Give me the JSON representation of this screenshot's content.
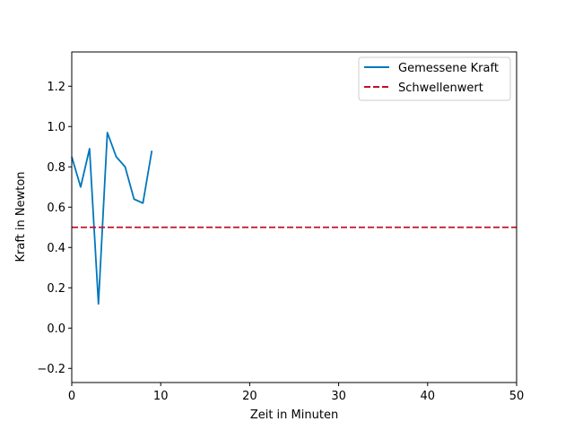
{
  "chart_data": {
    "type": "line",
    "title": "",
    "xlabel": "Zeit in Minuten",
    "ylabel": "Kraft in Newton",
    "xlim": [
      0,
      50
    ],
    "ylim": [
      -0.27,
      1.37
    ],
    "xticks": [
      0,
      10,
      20,
      30,
      40,
      50
    ],
    "xtick_labels": [
      "0",
      "10",
      "20",
      "30",
      "40",
      "50"
    ],
    "yticks": [
      -0.2,
      0.0,
      0.2,
      0.4,
      0.6,
      0.8,
      1.0,
      1.2
    ],
    "ytick_labels": [
      "−0.2",
      "0.0",
      "0.2",
      "0.4",
      "0.6",
      "0.8",
      "1.0",
      "1.2"
    ],
    "grid": false,
    "legend_position": "top-right",
    "series": [
      {
        "name": "Gemessene Kraft",
        "style": "solid",
        "color": "#0077bb",
        "x": [
          0,
          1,
          2,
          3,
          4,
          5,
          6,
          7,
          8,
          9
        ],
        "y": [
          0.85,
          0.7,
          0.89,
          0.12,
          0.97,
          0.85,
          0.8,
          0.64,
          0.62,
          0.88
        ]
      },
      {
        "name": "Schwellenwert",
        "style": "dashed",
        "color": "#c0102a",
        "x": [
          0,
          50
        ],
        "y": [
          0.5,
          0.5
        ]
      }
    ]
  }
}
